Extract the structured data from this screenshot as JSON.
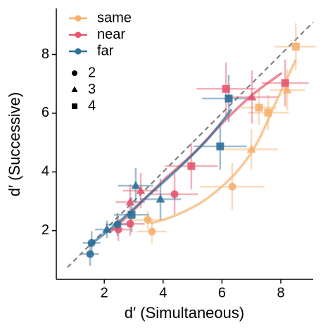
{
  "chart_data": {
    "type": "scatter",
    "x_label": "d′ (Simultaneous)",
    "y_label": "d′ (Successive)",
    "xlim": [
      0.37,
      9.1
    ],
    "ylim": [
      0.34,
      9.57
    ],
    "xticks": [
      2,
      4,
      6,
      8
    ],
    "yticks": [
      2,
      4,
      6,
      8
    ],
    "identity_line": [
      0.75,
      9.1
    ],
    "series": [
      {
        "name": "same",
        "color": "#f5b06c",
        "x": [
          3.48,
          3.62,
          6.35,
          7.0,
          7.26,
          7.57,
          8.22,
          8.51
        ],
        "values": [
          2.37,
          1.97,
          3.5,
          4.77,
          6.19,
          6.02,
          6.79,
          8.27
        ],
        "xerr": [
          0.6,
          0.5,
          1.1,
          0.9,
          0.6,
          0.7,
          0.6,
          0.7
        ],
        "yerr": [
          0.3,
          0.4,
          0.8,
          0.7,
          0.6,
          0.6,
          0.7,
          0.8
        ],
        "markers": [
          "circle",
          "circle",
          "circle",
          "triangle",
          "square",
          "square",
          "triangle",
          "square"
        ],
        "fit_x": [
          3.6,
          4.5,
          5.5,
          6.5,
          7.2,
          7.8,
          8.5
        ],
        "fit_y": [
          2.25,
          2.55,
          3.1,
          4.0,
          5.0,
          6.3,
          7.8
        ]
      },
      {
        "name": "near",
        "color": "#e8546b",
        "x": [
          2.48,
          2.88,
          2.88,
          3.24,
          4.39,
          4.96,
          6.14,
          7.02,
          8.15
        ],
        "values": [
          2.04,
          2.23,
          2.97,
          3.36,
          3.24,
          4.2,
          6.83,
          6.55,
          7.03
        ],
        "xerr": [
          0.4,
          0.5,
          0.5,
          0.6,
          0.8,
          0.9,
          1.0,
          0.9,
          0.8
        ],
        "yerr": [
          0.4,
          0.4,
          0.6,
          0.6,
          0.7,
          0.8,
          0.9,
          0.9,
          0.8
        ],
        "markers": [
          "circle",
          "circle",
          "triangle",
          "triangle",
          "circle",
          "square",
          "square",
          "triangle",
          "square"
        ],
        "fit_x": [
          2.2,
          3,
          4,
          5,
          6,
          7,
          8
        ],
        "fit_y": [
          1.95,
          2.7,
          3.7,
          4.6,
          5.65,
          6.6,
          7.35
        ]
      },
      {
        "name": "far",
        "color": "#2c6f97",
        "x": [
          1.52,
          1.57,
          2.09,
          2.45,
          2.93,
          3.07,
          3.91,
          5.94,
          6.23
        ],
        "values": [
          1.2,
          1.58,
          2.04,
          2.21,
          2.54,
          3.53,
          3.07,
          4.87,
          6.5
        ],
        "xerr": [
          0.3,
          0.3,
          0.4,
          0.4,
          0.6,
          0.6,
          0.7,
          0.9,
          0.9
        ],
        "yerr": [
          0.4,
          0.4,
          0.3,
          0.4,
          0.6,
          0.6,
          0.7,
          0.8,
          0.8
        ],
        "markers": [
          "circle",
          "circle",
          "triangle",
          "circle",
          "square",
          "triangle",
          "triangle",
          "square",
          "square"
        ],
        "fit_x": [
          1.5,
          2.5,
          3.5,
          4.5,
          5.5,
          6.3
        ],
        "fit_y": [
          1.5,
          2.3,
          3.2,
          4.1,
          5.1,
          6.1
        ]
      }
    ],
    "shape_legend": [
      {
        "label": "2",
        "marker": "circle"
      },
      {
        "label": "3",
        "marker": "triangle"
      },
      {
        "label": "4",
        "marker": "square"
      }
    ]
  }
}
